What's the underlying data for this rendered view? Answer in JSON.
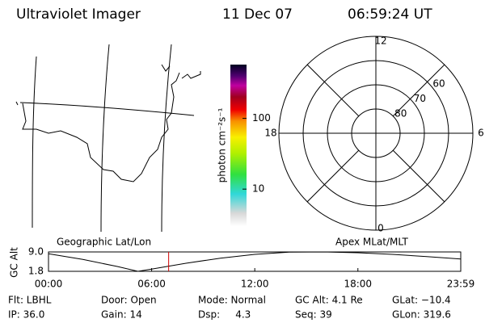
{
  "header": {
    "instrument": "Ultraviolet Imager",
    "date": "11 Dec 07",
    "time": "06:59:24 UT"
  },
  "map": {
    "label": "Geographic Lat/Lon"
  },
  "colorbar": {
    "label": "photon cm⁻²s⁻¹",
    "log": true,
    "lim": [
      3,
      575
    ],
    "ticks": [
      10,
      100
    ]
  },
  "polar": {
    "label": "Apex MLat/MLT",
    "lat_lim": [
      90,
      50
    ],
    "lat_rings": [
      80,
      70,
      60
    ],
    "mlt_labels": [
      12,
      6,
      0,
      18
    ]
  },
  "altitude": {
    "ylabel": "GC Alt",
    "ylim": [
      1.8,
      9.0
    ],
    "yticks": [
      {
        "value": 9.0,
        "label": "9.0"
      },
      1.8
    ],
    "xlim": [
      0,
      23.983
    ],
    "xticks": [
      {
        "value": 0,
        "label": "00:00"
      },
      {
        "value": 6,
        "label": "06:00"
      },
      {
        "value": 12,
        "label": "12:00"
      },
      {
        "value": 18,
        "label": "18:00"
      },
      {
        "value": 23.983,
        "label": "23:59"
      }
    ],
    "x": [
      0,
      2,
      4,
      5.2,
      6,
      8,
      10,
      12,
      14,
      16,
      18,
      20,
      22,
      23.983
    ],
    "values": [
      8.3,
      6.2,
      3.6,
      1.8,
      2.6,
      4.8,
      6.7,
      8.1,
      8.9,
      9.0,
      8.7,
      8.1,
      7.3,
      6.4
    ],
    "marker_time": 6.99,
    "marker_color": "#d00000"
  },
  "footer": {
    "rows": [
      [
        "Flt: LBHL",
        "Door: Open",
        "Mode: Normal",
        "GC Alt: 4.1 Re",
        "GLat: −10.4"
      ],
      [
        "IP: 36.0",
        "Gain: 14",
        "Dsp:     4.3",
        "Seq: 39",
        "GLon: 319.6"
      ]
    ]
  }
}
